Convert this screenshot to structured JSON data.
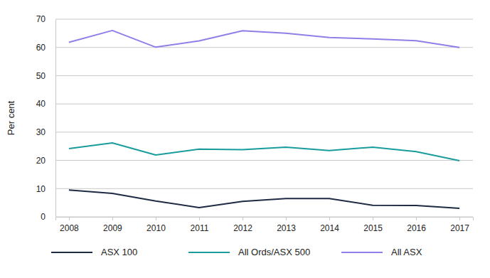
{
  "chart_data": {
    "type": "line",
    "y_label": "Per cent",
    "categories": [
      "2008",
      "2009",
      "2010",
      "2011",
      "2012",
      "2013",
      "2014",
      "2015",
      "2016",
      "2017"
    ],
    "series": [
      {
        "name": "ASX 100",
        "color": "#1f2a44",
        "values": [
          9.5,
          8.3,
          5.6,
          3.3,
          5.5,
          6.5,
          6.5,
          4.1,
          4.0,
          3.0
        ]
      },
      {
        "name": "All Ords/ASX 500",
        "color": "#1a9c9c",
        "values": [
          24.2,
          26.2,
          21.9,
          24.0,
          23.8,
          24.7,
          23.5,
          24.7,
          23.1,
          19.9
        ]
      },
      {
        "name": "All ASX",
        "color": "#8f7fe8",
        "values": [
          61.8,
          66.0,
          60.1,
          62.3,
          65.9,
          65.0,
          63.5,
          63.0,
          62.4,
          60.0
        ]
      }
    ],
    "ylim": [
      0,
      70
    ],
    "yticks": [
      0,
      10,
      20,
      30,
      40,
      50,
      60,
      70
    ],
    "grid": true,
    "legend": "bottom"
  }
}
